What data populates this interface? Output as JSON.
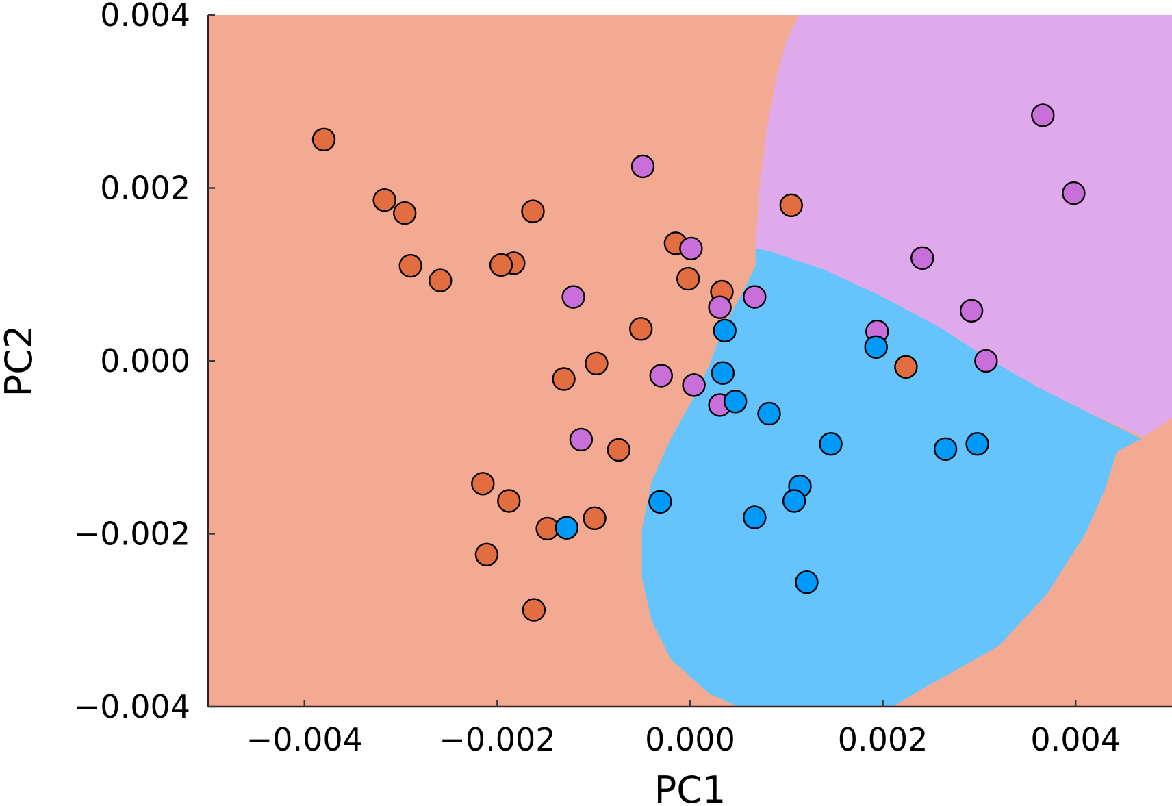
{
  "chart_data": {
    "type": "scatter",
    "title": "",
    "xlabel": "PC1",
    "ylabel": "PC2",
    "xlim": [
      -0.005,
      0.005
    ],
    "ylim": [
      -0.004,
      0.004
    ],
    "xticks": [
      -0.004,
      -0.002,
      0.0,
      0.002,
      0.004
    ],
    "yticks": [
      -0.004,
      -0.002,
      0.0,
      0.002,
      0.004
    ],
    "xtick_labels": [
      "−0.004",
      "−0.002",
      "0.000",
      "0.002",
      "0.004"
    ],
    "ytick_labels": [
      "−0.004",
      "−0.002",
      "0.000",
      "0.002",
      "0.004"
    ],
    "grid": false,
    "legend": "none",
    "background_regions": [
      {
        "name": "region-orange",
        "color": "#f3aa92"
      },
      {
        "name": "region-purple",
        "color": "#dfaaeb"
      },
      {
        "name": "region-blue",
        "color": "#64c4fb"
      }
    ],
    "region_boundaries": {
      "purple": [
        [
          0.00113,
          0.004
        ],
        [
          0.001,
          0.0037
        ],
        [
          0.0009,
          0.0033
        ],
        [
          0.0008,
          0.0027
        ],
        [
          0.00072,
          0.002
        ],
        [
          0.00068,
          0.0013
        ],
        [
          0.00082,
          0.00127
        ],
        [
          0.0014,
          0.00105
        ],
        [
          0.002,
          0.00074
        ],
        [
          0.0026,
          0.00038
        ],
        [
          0.0031,
          2e-05
        ],
        [
          0.0036,
          -0.0003
        ],
        [
          0.0041,
          -0.00058
        ],
        [
          0.0047,
          -0.00088
        ],
        [
          0.005,
          -0.00066
        ],
        [
          0.005,
          0.004
        ]
      ],
      "blue": [
        [
          0.00068,
          0.0013
        ],
        [
          0.00082,
          0.00127
        ],
        [
          0.0014,
          0.00105
        ],
        [
          0.002,
          0.00074
        ],
        [
          0.0026,
          0.00038
        ],
        [
          0.0031,
          2e-05
        ],
        [
          0.0036,
          -0.0003
        ],
        [
          0.0041,
          -0.00058
        ],
        [
          0.00468,
          -0.0009
        ],
        [
          0.00443,
          -0.00105
        ],
        [
          0.0043,
          -0.0015
        ],
        [
          0.0041,
          -0.002
        ],
        [
          0.0037,
          -0.0027
        ],
        [
          0.0032,
          -0.0033
        ],
        [
          0.0024,
          -0.0038
        ],
        [
          0.0021,
          -0.004
        ],
        [
          0.0005,
          -0.004
        ],
        [
          0.0002,
          -0.00385
        ],
        [
          -0.0002,
          -0.00345
        ],
        [
          -0.0004,
          -0.003
        ],
        [
          -0.0005,
          -0.0025
        ],
        [
          -0.0005,
          -0.00195
        ],
        [
          -0.0004,
          -0.0014
        ],
        [
          -0.0002,
          -0.0009
        ],
        [
          5e-05,
          -0.0004
        ],
        [
          0.0002,
          -5e-05
        ],
        [
          0.00035,
          0.0004
        ],
        [
          0.00055,
          0.0008
        ],
        [
          0.00068,
          0.0011
        ]
      ]
    },
    "series": [
      {
        "name": "orange",
        "color": "#e26d41",
        "points": [
          [
            -0.0038,
            0.00256
          ],
          [
            -0.00317,
            0.00186
          ],
          [
            -0.00296,
            0.00171
          ],
          [
            -0.0029,
            0.0011
          ],
          [
            -0.00259,
            0.00093
          ],
          [
            -0.00183,
            0.00113
          ],
          [
            -0.00196,
            0.00111
          ],
          [
            -0.00163,
            0.00173
          ],
          [
            -0.00015,
            0.00136
          ],
          [
            -2e-05,
            0.00095
          ],
          [
            0.00033,
            0.0008
          ],
          [
            -0.00051,
            0.00037
          ],
          [
            -0.00097,
            -3e-05
          ],
          [
            -0.00131,
            -0.00021
          ],
          [
            -0.00074,
            -0.00103
          ],
          [
            -0.00215,
            -0.00142
          ],
          [
            -0.00188,
            -0.00162
          ],
          [
            -0.00148,
            -0.00194
          ],
          [
            -0.00099,
            -0.00182
          ],
          [
            -0.00211,
            -0.00224
          ],
          [
            -0.00162,
            -0.00288
          ],
          [
            0.00105,
            0.0018
          ],
          [
            0.00224,
            -7e-05
          ]
        ]
      },
      {
        "name": "purple",
        "color": "#c86fd9",
        "points": [
          [
            -0.00049,
            0.00225
          ],
          [
            1e-05,
            0.0013
          ],
          [
            -0.00121,
            0.00074
          ],
          [
            0.00031,
            0.00062
          ],
          [
            0.00067,
            0.00074
          ],
          [
            -0.0003,
            -0.00017
          ],
          [
            4e-05,
            -0.00028
          ],
          [
            0.00031,
            -0.00051
          ],
          [
            -0.00113,
            -0.00091
          ],
          [
            0.00194,
            0.00034
          ],
          [
            0.00241,
            0.00119
          ],
          [
            0.00292,
            0.00058
          ],
          [
            0.00307,
            0.0
          ],
          [
            0.00366,
            0.00284
          ],
          [
            0.00398,
            0.00194
          ]
        ]
      },
      {
        "name": "blue",
        "color": "#009afa",
        "points": [
          [
            0.00036,
            0.00035
          ],
          [
            0.00034,
            -0.00014
          ],
          [
            0.00047,
            -0.00047
          ],
          [
            0.00082,
            -0.00061
          ],
          [
            0.00193,
            0.00016
          ],
          [
            0.00146,
            -0.00096
          ],
          [
            0.00265,
            -0.00102
          ],
          [
            0.00298,
            -0.00096
          ],
          [
            0.00114,
            -0.00145
          ],
          [
            0.00108,
            -0.00162
          ],
          [
            0.00067,
            -0.00181
          ],
          [
            -0.00031,
            -0.00163
          ],
          [
            -0.00128,
            -0.00193
          ],
          [
            0.00121,
            -0.00256
          ]
        ]
      }
    ]
  }
}
